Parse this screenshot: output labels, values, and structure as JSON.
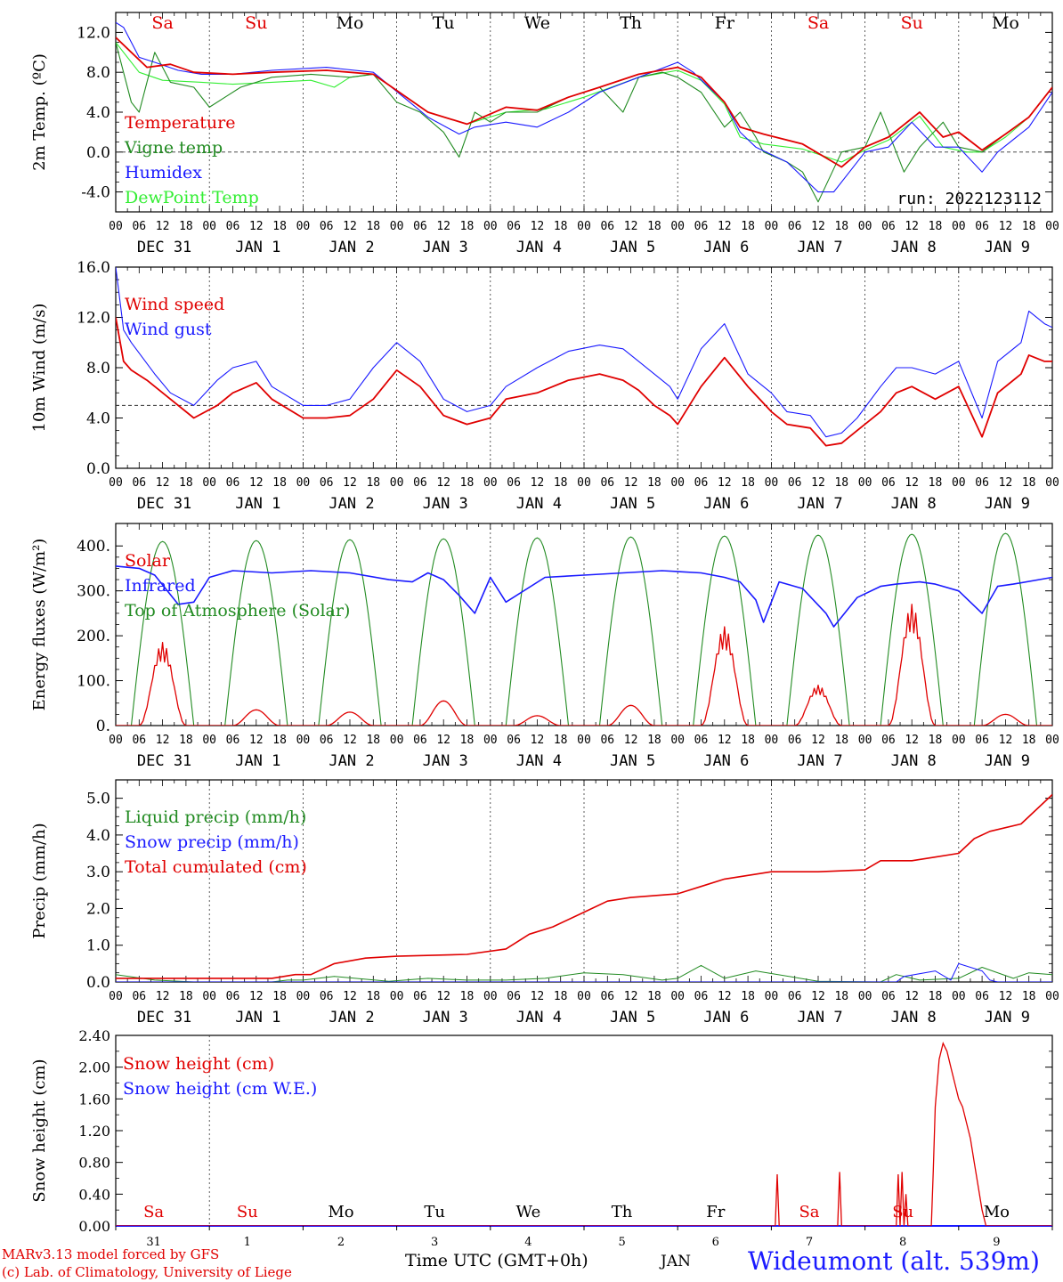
{
  "footer": {
    "model": "MARv3.13 model forced by GFS",
    "credit": "(c) Lab. of Climatology, University of Liege",
    "time_label": "Time UTC (GMT+0h)",
    "month_label": "JAN",
    "station": "Wideumont (alt. 539m)"
  },
  "colors": {
    "red": "#e00000",
    "green": "#228b22",
    "blue": "#1a1aff",
    "lightgreen": "#33ee33",
    "weekend": "#e00000",
    "weekday": "#000000"
  },
  "days": {
    "names": [
      "Sa",
      "Su",
      "Mo",
      "Tu",
      "We",
      "Th",
      "Fr",
      "Sa",
      "Su",
      "Mo"
    ],
    "weekend": [
      true,
      true,
      false,
      false,
      false,
      false,
      false,
      true,
      true,
      false
    ],
    "date_labels": [
      "DEC 31",
      "JAN  1",
      "JAN  2",
      "JAN  3",
      "JAN  4",
      "JAN  5",
      "JAN  6",
      "JAN  7",
      "JAN  8",
      "JAN  9"
    ],
    "short_dates": [
      "31",
      "1",
      "2",
      "3",
      "4",
      "5",
      "6",
      "7",
      "8",
      "9"
    ],
    "hour_ticks": [
      "00",
      "06",
      "12",
      "18"
    ],
    "final_tick": "00"
  },
  "chart_data": [
    {
      "type": "line",
      "ylabel": "2m Temp. (ºC)",
      "ylim": [
        -6,
        14
      ],
      "yticks": [
        "-4.0",
        "0.0",
        "4.0",
        "8.0",
        "12.0"
      ],
      "yticks_values": [
        -4,
        0,
        4,
        8,
        12
      ],
      "ref_line": 0,
      "annotation": "run: 2022123112",
      "x_unit": "hours since Dec 31 00 UTC",
      "series": [
        {
          "name": "Temperature",
          "color": "red",
          "x": [
            0,
            4,
            8,
            14,
            20,
            30,
            40,
            54,
            66,
            80,
            90,
            100,
            108,
            116,
            124,
            134,
            144,
            150,
            156,
            160,
            166,
            176,
            186,
            192,
            198,
            206,
            212,
            216,
            222,
            228,
            234,
            240
          ],
          "y": [
            11.5,
            10,
            8.5,
            8.8,
            8,
            7.8,
            8,
            8.2,
            7.8,
            4,
            2.8,
            4.5,
            4.2,
            5.5,
            6.5,
            7.8,
            8.5,
            7.5,
            5,
            2.5,
            1.8,
            0.8,
            -1.5,
            0.5,
            1.5,
            4,
            1.5,
            2,
            0.2,
            1.8,
            3.5,
            6.5
          ]
        },
        {
          "name": "Vigne temp",
          "color": "green",
          "x": [
            0,
            4,
            6,
            10,
            14,
            20,
            24,
            32,
            40,
            50,
            60,
            66,
            72,
            78,
            84,
            88,
            92,
            96,
            100,
            108,
            116,
            124,
            130,
            134,
            140,
            144,
            150,
            156,
            160,
            164,
            166,
            172,
            176,
            180,
            186,
            192,
            196,
            198,
            202,
            206,
            212,
            216,
            222,
            228,
            234,
            240
          ],
          "y": [
            11,
            5,
            4,
            10,
            7,
            6.5,
            4.5,
            6.5,
            7.5,
            7.8,
            7.5,
            7.8,
            5,
            4,
            2,
            -0.5,
            4,
            3,
            4,
            4,
            5.5,
            6.5,
            4,
            7.5,
            8,
            7.5,
            6,
            2.5,
            4,
            1.5,
            0,
            -1,
            -2,
            -5,
            0,
            0.5,
            4,
            2,
            -2,
            0.5,
            3,
            0.5,
            0,
            1.8,
            3.5,
            6.5
          ]
        },
        {
          "name": "Humidex",
          "color": "blue",
          "x": [
            0,
            2,
            6,
            10,
            16,
            22,
            30,
            40,
            54,
            66,
            80,
            88,
            92,
            100,
            108,
            116,
            124,
            134,
            144,
            148,
            156,
            160,
            164,
            172,
            176,
            180,
            184,
            188,
            192,
            198,
            204,
            210,
            216,
            222,
            226,
            234,
            240
          ],
          "y": [
            13,
            12.5,
            9.5,
            9,
            8.2,
            7.8,
            7.8,
            8.2,
            8.5,
            8,
            3.5,
            1.8,
            2.5,
            3,
            2.5,
            4,
            6,
            7.5,
            9,
            8,
            5,
            2,
            0.5,
            -1,
            -2.5,
            -4,
            -4,
            -2,
            0,
            0.5,
            3,
            0.5,
            0.5,
            -2,
            0,
            2.5,
            6
          ]
        },
        {
          "name": "DewPoint Temp",
          "color": "lightgreen",
          "x": [
            0,
            6,
            12,
            22,
            30,
            40,
            50,
            56,
            60,
            66,
            80,
            90,
            100,
            110,
            120,
            134,
            144,
            150,
            156,
            160,
            166,
            176,
            186,
            192,
            198,
            206,
            212,
            218,
            222,
            228,
            234,
            240
          ],
          "y": [
            11,
            8,
            7.2,
            7,
            6.8,
            7,
            7.2,
            6.5,
            7.5,
            7.8,
            4,
            2.8,
            4,
            4.3,
            5.5,
            7.5,
            8.2,
            7.2,
            4.8,
            1.5,
            0.8,
            0.3,
            -1,
            0.2,
            1.2,
            3.6,
            0.5,
            0,
            0,
            1.5,
            3.5,
            6.5
          ]
        }
      ]
    },
    {
      "type": "line",
      "ylabel": "10m Wind (m/s)",
      "ylim": [
        0,
        16
      ],
      "yticks": [
        "0.0",
        "4.0",
        "8.0",
        "12.0",
        "16.0"
      ],
      "yticks_values": [
        0,
        4,
        8,
        12,
        16
      ],
      "ref_line": 5,
      "series": [
        {
          "name": "Wind speed",
          "color": "red",
          "x": [
            0,
            2,
            4,
            8,
            14,
            20,
            26,
            30,
            36,
            40,
            48,
            54,
            60,
            66,
            72,
            78,
            84,
            90,
            96,
            100,
            108,
            116,
            124,
            130,
            134,
            138,
            142,
            144,
            150,
            156,
            162,
            168,
            172,
            178,
            182,
            186,
            190,
            196,
            200,
            204,
            210,
            216,
            222,
            226,
            232,
            234,
            238,
            240
          ],
          "y": [
            12,
            8.5,
            7.8,
            7,
            5.5,
            4,
            5,
            6,
            6.8,
            5.5,
            4,
            4,
            4.2,
            5.5,
            7.8,
            6.5,
            4.2,
            3.5,
            4,
            5.5,
            6,
            7,
            7.5,
            7,
            6.2,
            5,
            4.2,
            3.5,
            6.5,
            8.8,
            6.5,
            4.5,
            3.5,
            3.2,
            1.8,
            2,
            3,
            4.5,
            6,
            6.5,
            5.5,
            6.5,
            2.5,
            6,
            7.5,
            9,
            8.5,
            8.5
          ]
        },
        {
          "name": "Wind gust",
          "color": "blue",
          "x": [
            0,
            2,
            4,
            10,
            14,
            20,
            26,
            30,
            36,
            40,
            48,
            54,
            60,
            66,
            72,
            78,
            84,
            90,
            96,
            100,
            108,
            116,
            124,
            130,
            134,
            138,
            142,
            144,
            150,
            156,
            162,
            168,
            172,
            178,
            182,
            186,
            190,
            196,
            200,
            204,
            210,
            216,
            222,
            226,
            232,
            234,
            238,
            240
          ],
          "y": [
            16,
            11,
            10,
            7.5,
            6,
            5,
            7,
            8,
            8.5,
            6.5,
            5,
            5,
            5.5,
            8,
            10,
            8.5,
            5.5,
            4.5,
            5,
            6.5,
            8,
            9.3,
            9.8,
            9.5,
            8.5,
            7.5,
            6.5,
            5.5,
            9.5,
            11.5,
            7.5,
            6,
            4.5,
            4.2,
            2.5,
            2.8,
            4,
            6.5,
            8,
            8,
            7.5,
            8.5,
            4,
            8.5,
            10,
            12.5,
            11.5,
            11.2
          ]
        }
      ]
    },
    {
      "type": "line",
      "ylabel": "Energy fluxes (W/m²)",
      "ylim": [
        0,
        450
      ],
      "yticks": [
        "0.",
        "100.",
        "200.",
        "300.",
        "400."
      ],
      "yticks_values": [
        0,
        100,
        200,
        300,
        400
      ],
      "series": [
        {
          "name": "Solar",
          "color": "red",
          "peaks": [
            185,
            35,
            30,
            55,
            22,
            45,
            220,
            90,
            270,
            25
          ]
        },
        {
          "name": "Infrared",
          "color": "blue",
          "x": [
            0,
            6,
            10,
            16,
            20,
            24,
            30,
            40,
            50,
            60,
            70,
            76,
            80,
            84,
            88,
            92,
            96,
            100,
            110,
            120,
            130,
            140,
            150,
            156,
            160,
            164,
            166,
            170,
            176,
            182,
            184,
            190,
            196,
            200,
            206,
            210,
            216,
            222,
            226,
            230,
            240
          ],
          "y": [
            355,
            350,
            335,
            270,
            275,
            330,
            345,
            340,
            345,
            340,
            325,
            320,
            340,
            325,
            290,
            250,
            330,
            275,
            330,
            335,
            340,
            345,
            340,
            330,
            320,
            280,
            230,
            320,
            305,
            250,
            220,
            285,
            310,
            315,
            320,
            315,
            300,
            250,
            310,
            315,
            330
          ]
        },
        {
          "name": "Top of Atmosphere (Solar)",
          "color": "green",
          "peaks": [
            410,
            412,
            414,
            416,
            418,
            420,
            422,
            424,
            426,
            428
          ]
        }
      ]
    },
    {
      "type": "line",
      "ylabel": "Precip (mm/h)",
      "ylim": [
        0,
        5.5
      ],
      "yticks": [
        "0.0",
        "1.0",
        "2.0",
        "3.0",
        "4.0",
        "5.0"
      ],
      "yticks_values": [
        0,
        1,
        2,
        3,
        4,
        5
      ],
      "series": [
        {
          "name": "Liquid precip (mm/h)",
          "color": "green",
          "x": [
            0,
            10,
            20,
            30,
            40,
            44,
            48,
            56,
            70,
            80,
            90,
            100,
            110,
            120,
            130,
            140,
            144,
            150,
            156,
            164,
            180,
            196,
            200,
            206,
            216,
            222,
            230,
            234,
            240
          ],
          "y": [
            0.2,
            0.05,
            0,
            0,
            0,
            0.05,
            0.05,
            0.15,
            0.02,
            0.1,
            0.05,
            0.05,
            0.1,
            0.25,
            0.2,
            0.05,
            0.1,
            0.45,
            0.1,
            0.3,
            0.02,
            0,
            0.2,
            0.05,
            0.1,
            0.4,
            0.1,
            0.25,
            0.2
          ]
        },
        {
          "name": "Snow precip (mm/h)",
          "color": "blue",
          "x": [
            0,
            190,
            200,
            202,
            210,
            214,
            216,
            222,
            224,
            226,
            240
          ],
          "y": [
            0,
            0,
            0,
            0.15,
            0.3,
            0.05,
            0.5,
            0.3,
            0.05,
            0,
            0
          ]
        },
        {
          "name": "Total cumulated (cm)",
          "color": "red",
          "x": [
            0,
            40,
            46,
            50,
            56,
            64,
            72,
            90,
            100,
            106,
            112,
            120,
            126,
            132,
            144,
            150,
            156,
            162,
            168,
            180,
            192,
            196,
            204,
            210,
            216,
            220,
            224,
            232,
            240
          ],
          "y": [
            0.1,
            0.1,
            0.2,
            0.2,
            0.5,
            0.65,
            0.7,
            0.75,
            0.9,
            1.3,
            1.5,
            1.9,
            2.2,
            2.3,
            2.4,
            2.6,
            2.8,
            2.9,
            3,
            3,
            3.05,
            3.3,
            3.3,
            3.4,
            3.5,
            3.9,
            4.1,
            4.3,
            5.1
          ]
        }
      ]
    },
    {
      "type": "line",
      "ylabel": "Snow height (cm)",
      "ylim": [
        0,
        2.4
      ],
      "yticks": [
        "0.00",
        "0.40",
        "0.80",
        "1.20",
        "1.60",
        "2.00",
        "2.40"
      ],
      "yticks_values": [
        0,
        0.4,
        0.8,
        1.2,
        1.6,
        2.0,
        2.4
      ],
      "series": [
        {
          "name": "Snow height (cm)",
          "color": "red",
          "x": [
            0,
            169,
            169.5,
            170,
            185,
            185.5,
            186,
            200,
            200.5,
            201,
            201.5,
            202,
            202.5,
            203,
            209,
            209.5,
            210,
            211,
            212,
            213,
            214,
            215,
            216,
            217,
            218,
            219,
            220,
            221,
            222,
            223,
            240
          ],
          "y": [
            0,
            0,
            0.65,
            0,
            0,
            0.68,
            0,
            0,
            0.65,
            0,
            0.68,
            0,
            0.4,
            0,
            0,
            0.7,
            1.5,
            2.1,
            2.3,
            2.2,
            2.0,
            1.8,
            1.6,
            1.5,
            1.3,
            1.1,
            0.8,
            0.5,
            0.2,
            0,
            0
          ]
        },
        {
          "name": "Snow height (cm W.E.)",
          "color": "blue",
          "x": [
            0,
            240
          ],
          "y": [
            0,
            0
          ]
        }
      ]
    }
  ]
}
